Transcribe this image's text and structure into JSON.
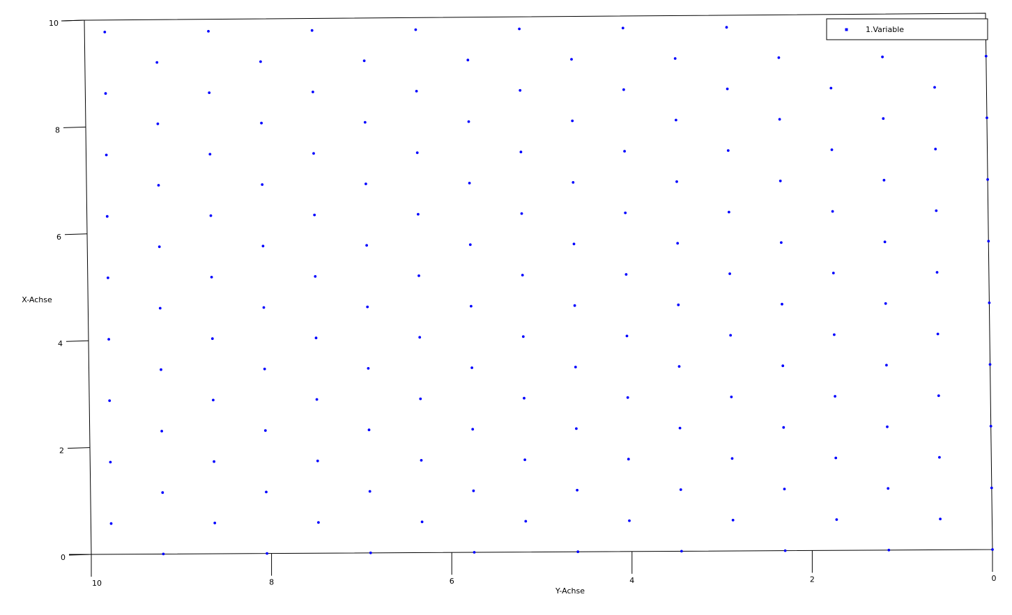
{
  "chart_data": {
    "type": "scatter",
    "xlabel": "Y-Achse",
    "ylabel": "X-Achse",
    "x_reversed": true,
    "xlim": [
      10,
      0
    ],
    "ylim": [
      0,
      10
    ],
    "x_ticks": [
      "10",
      "8",
      "6",
      "4",
      "2",
      "0"
    ],
    "y_ticks": [
      "10",
      "8",
      "6",
      "4",
      "2",
      "0"
    ],
    "grid": false,
    "legend_position": "top-right",
    "marker_color": "#0000ff",
    "series": [
      {
        "name": "1.Variable",
        "even_rows": {
          "y_values": [
            0,
            1.15,
            2.3,
            3.45,
            4.6,
            5.75,
            6.9,
            8.05,
            9.2
          ],
          "x_values": [
            9.2,
            8.05,
            6.9,
            5.75,
            4.6,
            3.45,
            2.3,
            1.15,
            0
          ]
        },
        "odd_rows": {
          "y_values": [
            0.575,
            1.725,
            2.875,
            4.025,
            5.175,
            6.325,
            7.475,
            8.625,
            9.775
          ],
          "x_values": [
            9.775,
            8.625,
            7.475,
            6.325,
            5.175,
            4.025,
            2.875,
            1.725,
            0.575
          ]
        }
      }
    ]
  }
}
